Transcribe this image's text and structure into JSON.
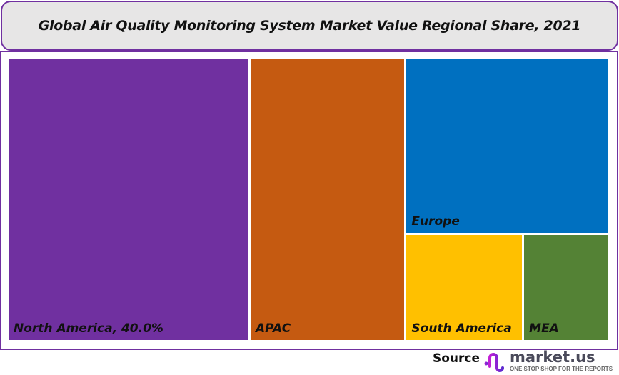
{
  "chart_data": {
    "type": "treemap",
    "title": "Global Air Quality Monitoring System Market Value Regional Share, 2021",
    "items": [
      {
        "label": "North America, 40.0%",
        "name": "North America",
        "value": 40.0,
        "color": "#7030a0"
      },
      {
        "label": "APAC",
        "name": "APAC",
        "value": 26.0,
        "color": "#c55a11"
      },
      {
        "label": "Europe",
        "name": "Europe",
        "value": 21.0,
        "color": "#0070c0"
      },
      {
        "label": "South America",
        "name": "South America",
        "value": 7.5,
        "color": "#ffc000"
      },
      {
        "label": "MEA",
        "name": "MEA",
        "value": 5.5,
        "color": "#548235"
      }
    ]
  },
  "footer": {
    "source_label": "Source",
    "logo_text": "market.us",
    "logo_tagline": "ONE STOP SHOP FOR THE REPORTS"
  }
}
